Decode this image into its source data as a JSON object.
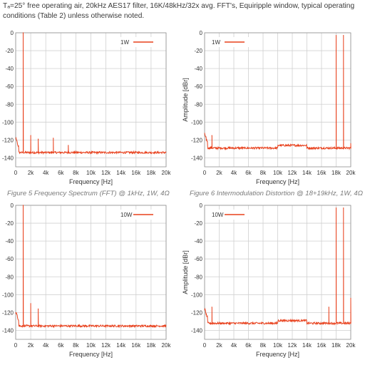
{
  "intro": "Tₐ=25° free operating air, 20kHz AES17 filter, 16K/48kHz/32x avg. FFT's, Equiripple window, typical operating conditions (Table 2) unless otherwise noted.",
  "captions": {
    "fig5": "Figure 5 Frequency Spectrum (FFT) @ 1kHz, 1W, 4Ω",
    "fig6": "Figure 6 Intermodulation Distortion @ 18+19kHz, 1W, 4Ω"
  },
  "colors": {
    "trace": "#e8401c",
    "grid": "#d0d0d0",
    "frame": "#909090"
  },
  "chart_data": [
    {
      "type": "line",
      "legend": "1W",
      "legend_position": "top-right",
      "xlabel": "Frequency [Hz]",
      "ylabel": "",
      "xlim": [
        0,
        20000
      ],
      "ylim": [
        -150,
        0
      ],
      "xticks": [
        "0",
        "2k",
        "4k",
        "6k",
        "8k",
        "10k",
        "12k",
        "14k",
        "16k",
        "18k",
        "20k"
      ],
      "yticks": [
        "0",
        "-20",
        "-40",
        "-60",
        "-80",
        "-100",
        "-120",
        "-140"
      ],
      "grid": true,
      "floor": -134,
      "peaks": [
        {
          "x": 1000,
          "y": 0
        },
        {
          "x": 2000,
          "y": -115
        },
        {
          "x": 3000,
          "y": -119
        },
        {
          "x": 5000,
          "y": -118
        },
        {
          "x": 7000,
          "y": -126
        }
      ]
    },
    {
      "type": "line",
      "legend": "1W",
      "legend_position": "top-left",
      "xlabel": "Frequency [Hz]",
      "ylabel": "Amplitude [dBr]",
      "xlim": [
        0,
        20000
      ],
      "ylim": [
        -150,
        0
      ],
      "xticks": [
        "0",
        "2k",
        "4k",
        "6k",
        "8k",
        "10k",
        "12k",
        "14k",
        "16k",
        "18k",
        "20k"
      ],
      "yticks": [
        "0",
        "-20",
        "-40",
        "-60",
        "-80",
        "-100",
        "-120",
        "-140"
      ],
      "grid": true,
      "floor": -129,
      "peaks": [
        {
          "x": 1000,
          "y": -115
        },
        {
          "x": 18000,
          "y": -3
        },
        {
          "x": 19000,
          "y": -3
        },
        {
          "x": 20000,
          "y": -124
        }
      ]
    },
    {
      "type": "line",
      "legend": "10W",
      "legend_position": "top-right",
      "xlabel": "Frequency [Hz]",
      "ylabel": "",
      "xlim": [
        0,
        20000
      ],
      "ylim": [
        -150,
        0
      ],
      "xticks": [
        "0",
        "2k",
        "4k",
        "6k",
        "8k",
        "10k",
        "12k",
        "14k",
        "16k",
        "18k",
        "20k"
      ],
      "yticks": [
        "0",
        "-20",
        "-40",
        "-60",
        "-80",
        "-100",
        "-120",
        "-140"
      ],
      "grid": true,
      "floor": -135,
      "peaks": [
        {
          "x": 1000,
          "y": 0
        },
        {
          "x": 2000,
          "y": -110
        },
        {
          "x": 3000,
          "y": -116
        }
      ]
    },
    {
      "type": "line",
      "legend": "10W",
      "legend_position": "top-left",
      "xlabel": "Frequency [Hz]",
      "ylabel": "Amplitude [dBr]",
      "xlim": [
        0,
        20000
      ],
      "ylim": [
        -150,
        0
      ],
      "xticks": [
        "0",
        "2k",
        "4k",
        "6k",
        "8k",
        "10k",
        "12k",
        "14k",
        "16k",
        "18k",
        "20k"
      ],
      "yticks": [
        "0",
        "-20",
        "-40",
        "-60",
        "-80",
        "-100",
        "-120",
        "-140"
      ],
      "grid": true,
      "floor": -132,
      "peaks": [
        {
          "x": 1000,
          "y": -114
        },
        {
          "x": 17000,
          "y": -114
        },
        {
          "x": 18000,
          "y": -3
        },
        {
          "x": 19000,
          "y": -3
        },
        {
          "x": 20000,
          "y": -104
        }
      ]
    }
  ]
}
